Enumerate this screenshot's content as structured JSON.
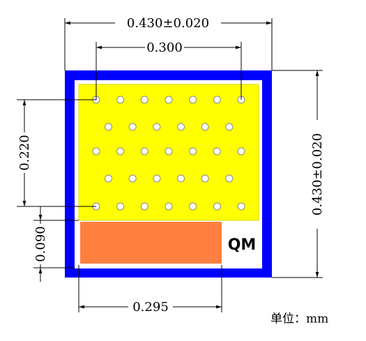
{
  "dimensions": {
    "top_width": "0.430±0.020",
    "pitch_x": "0.300",
    "pitch_y": "0.220",
    "pad_height": "0.090",
    "pad_width": "0.295",
    "right_height": "0.430±0.020"
  },
  "logo": "QM",
  "unit_note": "单位：mm"
}
